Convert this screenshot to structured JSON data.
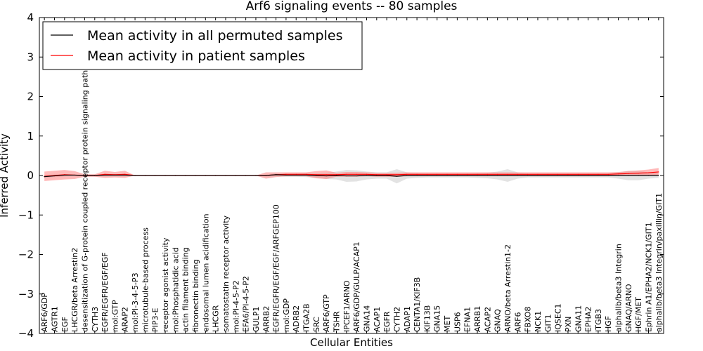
{
  "chart_data": {
    "type": "line",
    "title": "Arf6 signaling events -- 80 samples",
    "xlabel": "Cellular Entities",
    "ylabel": "Inferred Activity",
    "ylim": [
      -4,
      4
    ],
    "yticks": [
      -4,
      -3,
      -2,
      -1,
      0,
      1,
      2,
      3,
      4
    ],
    "grid": false,
    "legend_position": "top-left",
    "categories": [
      "ARF6/GDP",
      "AGTR1",
      "EGF",
      "LHCGR/beta Arrestin2",
      "desensitization of G-protein coupled receptor protein signaling pathway",
      "CYTH3",
      "EGFR/EGFR/EGF/EGF",
      "mol:GTP",
      "ARAP2",
      "mol:PI-3-4-5-P3",
      "microtubule-based process",
      "PIP3-E",
      "receptor agonist activity",
      "mol:Phosphatidic acid",
      "actin filament binding",
      "fibronectin binding",
      "endosomal lumen acidification",
      "LHCGR",
      "somatostatin receptor activity",
      "mol:PI-4-5-P2",
      "EFA6/PI-4-5-P2",
      "GULP1",
      "ARRB2",
      "EGFR/EGFR/EGF/EGF/ARFGEP100",
      "mol:GDP",
      "ADRB2",
      "ITGA2B",
      "SRC",
      "ARF6/GTP",
      "TSHR",
      "IPCEF1/ARNO",
      "ARF6/GDP/GULP/ACAP1",
      "GNA14",
      "ACAP1",
      "EGFR",
      "CYTH2",
      "ADAP1",
      "CENTA1/KIF3B",
      "KIF13B",
      "GNA15",
      "MET",
      "USP6",
      "EFNA1",
      "ARRB1",
      "ACAP2",
      "GNAQ",
      "ARNO/beta Arrestin1-2",
      "ARF6",
      "FBXO8",
      "NCK1",
      "GIT1",
      "IQSEC1",
      "PXN",
      "GNA11",
      "EPHA2",
      "ITGB3",
      "HGF",
      "alphaIIb/beta3 Integrin",
      "GNAQ/ARNO",
      "HGF/MET",
      "Ephrin A1/EPHA2/NCK1/GIT1",
      "alphaIIb/beta3 Integrin/paxillin/GIT1"
    ],
    "series": [
      {
        "name": "Mean activity in all permuted samples",
        "color": "#000000",
        "band_color": "#999999",
        "values": [
          -0.03,
          -0.01,
          0.01,
          0.01,
          0.0,
          0.0,
          0.01,
          0.01,
          0.01,
          0,
          0,
          0,
          0,
          0,
          0,
          0,
          0,
          0,
          0,
          0,
          0,
          0,
          0,
          0.02,
          0.01,
          0.01,
          0.01,
          0.0,
          -0.01,
          0.0,
          -0.01,
          -0.01,
          0.0,
          0.0,
          0.0,
          -0.02,
          0.0,
          0.0,
          0.0,
          0.0,
          0.0,
          0.0,
          0.0,
          0.0,
          0.0,
          0.0,
          0.0,
          0.0,
          0.0,
          0.0,
          0.0,
          0.0,
          0.0,
          0.0,
          0.0,
          0.0,
          0.0,
          0.0,
          0.0,
          0.0,
          0.0,
          0.0
        ],
        "band": [
          0.03,
          0.03,
          0.03,
          0.02,
          0.02,
          0.02,
          0.03,
          0.03,
          0.03,
          0,
          0,
          0,
          0,
          0,
          0,
          0,
          0,
          0,
          0,
          0,
          0,
          0,
          0.02,
          0.04,
          0.04,
          0.04,
          0.05,
          0.06,
          0.08,
          0.1,
          0.15,
          0.14,
          0.1,
          0.08,
          0.08,
          0.18,
          0.08,
          0.06,
          0.05,
          0.05,
          0.05,
          0.05,
          0.05,
          0.06,
          0.07,
          0.1,
          0.16,
          0.08,
          0.05,
          0.05,
          0.05,
          0.05,
          0.05,
          0.05,
          0.05,
          0.05,
          0.05,
          0.08,
          0.12,
          0.12,
          0.08,
          0.06
        ]
      },
      {
        "name": "Mean activity in patient samples",
        "color": "#ff0000",
        "band_color": "#ff8080",
        "values": [
          -0.02,
          0.0,
          0.02,
          0.01,
          0.0,
          0.0,
          0.03,
          0.02,
          0.03,
          0,
          0,
          0,
          0,
          0,
          0,
          0,
          0,
          0,
          0,
          0,
          0,
          0,
          0.0,
          0.02,
          0.03,
          0.03,
          0.03,
          0.02,
          0.02,
          0.02,
          0.03,
          0.03,
          0.03,
          0.02,
          0.02,
          0.02,
          0.03,
          0.03,
          0.03,
          0.03,
          0.03,
          0.03,
          0.03,
          0.03,
          0.03,
          0.03,
          0.03,
          0.03,
          0.03,
          0.03,
          0.03,
          0.03,
          0.03,
          0.03,
          0.03,
          0.03,
          0.03,
          0.04,
          0.05,
          0.06,
          0.07,
          0.09
        ],
        "band": [
          0.12,
          0.12,
          0.12,
          0.1,
          0.03,
          0.03,
          0.09,
          0.07,
          0.09,
          0,
          0,
          0,
          0,
          0,
          0,
          0,
          0,
          0,
          0,
          0,
          0,
          0,
          0.08,
          0.06,
          0.05,
          0.05,
          0.05,
          0.09,
          0.11,
          0.05,
          0.06,
          0.06,
          0.05,
          0.05,
          0.05,
          0.05,
          0.05,
          0.05,
          0.05,
          0.05,
          0.05,
          0.05,
          0.05,
          0.05,
          0.05,
          0.05,
          0.05,
          0.05,
          0.05,
          0.05,
          0.05,
          0.05,
          0.05,
          0.05,
          0.05,
          0.05,
          0.05,
          0.05,
          0.06,
          0.07,
          0.08,
          0.1
        ]
      }
    ]
  }
}
